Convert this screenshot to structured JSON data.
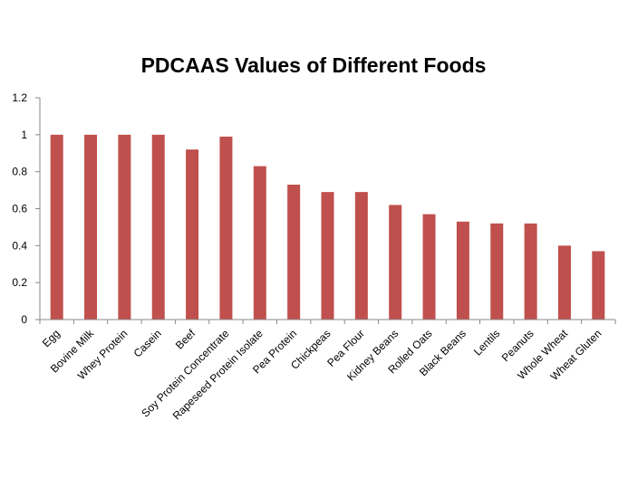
{
  "chart_data": {
    "type": "bar",
    "title": "PDCAAS Values of Different Foods",
    "xlabel": "",
    "ylabel": "",
    "ylim": [
      0,
      1.2
    ],
    "yticks": [
      "0",
      "0.2",
      "0.4",
      "0.6",
      "0.8",
      "1",
      "1.2"
    ],
    "ytick_values": [
      0,
      0.2,
      0.4,
      0.6,
      0.8,
      1.0,
      1.2
    ],
    "grid": false,
    "legend": "none",
    "bar_color": "#c0504d",
    "categories": [
      "Egg",
      "Bovine Milk",
      "Whey Protein",
      "Casein",
      "Beef",
      "Soy Protein Concentrate",
      "Rapeseed Protein Isolate",
      "Pea Protein",
      "Chickpeas",
      "Pea Flour",
      "Kidney Beans",
      "Rolled Oats",
      "Black Beans",
      "Lentils",
      "Peanuts",
      "Whole Wheat",
      "Wheat Gluten"
    ],
    "values": [
      1.0,
      1.0,
      1.0,
      1.0,
      0.92,
      0.99,
      0.83,
      0.73,
      0.69,
      0.69,
      0.62,
      0.57,
      0.53,
      0.52,
      0.52,
      0.4,
      0.37
    ]
  }
}
